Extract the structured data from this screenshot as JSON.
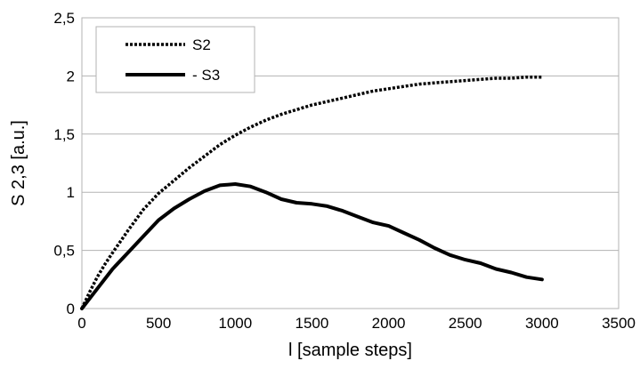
{
  "chart_data": {
    "type": "line",
    "title": "",
    "xlabel": "l [sample steps]",
    "ylabel": "S 2,3 [a.u.]",
    "xlim": [
      0,
      3500
    ],
    "ylim": [
      0,
      2.5
    ],
    "xticks": [
      0,
      500,
      1000,
      1500,
      2000,
      2500,
      3000,
      3500
    ],
    "xtick_labels": [
      "0",
      "500",
      "1000",
      "1500",
      "2000",
      "2500",
      "3000",
      "3500"
    ],
    "yticks": [
      0,
      0.5,
      1,
      1.5,
      2,
      2.5
    ],
    "ytick_labels": [
      "0",
      "0,5",
      "1",
      "1,5",
      "2",
      "2,5"
    ],
    "grid": "horizontal",
    "legend_position": "top-left",
    "series": [
      {
        "name": "S2",
        "style": "dotted",
        "color": "#000000",
        "x": [
          0,
          50,
          100,
          150,
          200,
          300,
          400,
          500,
          600,
          700,
          800,
          900,
          1000,
          1100,
          1200,
          1300,
          1400,
          1500,
          1600,
          1700,
          1800,
          1900,
          2000,
          2100,
          2200,
          2300,
          2400,
          2500,
          2600,
          2700,
          2800,
          2900,
          3000
        ],
        "y": [
          0,
          0.14,
          0.27,
          0.38,
          0.48,
          0.67,
          0.85,
          0.99,
          1.1,
          1.21,
          1.31,
          1.41,
          1.49,
          1.56,
          1.62,
          1.67,
          1.71,
          1.75,
          1.78,
          1.81,
          1.84,
          1.87,
          1.89,
          1.91,
          1.93,
          1.94,
          1.95,
          1.96,
          1.97,
          1.98,
          1.98,
          1.99,
          1.99
        ]
      },
      {
        "name": "- S3",
        "style": "solid",
        "color": "#000000",
        "x": [
          0,
          100,
          200,
          300,
          400,
          500,
          600,
          700,
          800,
          900,
          1000,
          1100,
          1200,
          1300,
          1400,
          1500,
          1600,
          1700,
          1800,
          1900,
          2000,
          2100,
          2200,
          2300,
          2400,
          2500,
          2600,
          2700,
          2800,
          2900,
          3000
        ],
        "y": [
          0,
          0.17,
          0.34,
          0.48,
          0.62,
          0.76,
          0.86,
          0.94,
          1.01,
          1.06,
          1.07,
          1.05,
          1.0,
          0.94,
          0.91,
          0.9,
          0.88,
          0.84,
          0.79,
          0.74,
          0.71,
          0.65,
          0.59,
          0.52,
          0.46,
          0.42,
          0.39,
          0.34,
          0.31,
          0.27,
          0.25
        ]
      }
    ]
  }
}
